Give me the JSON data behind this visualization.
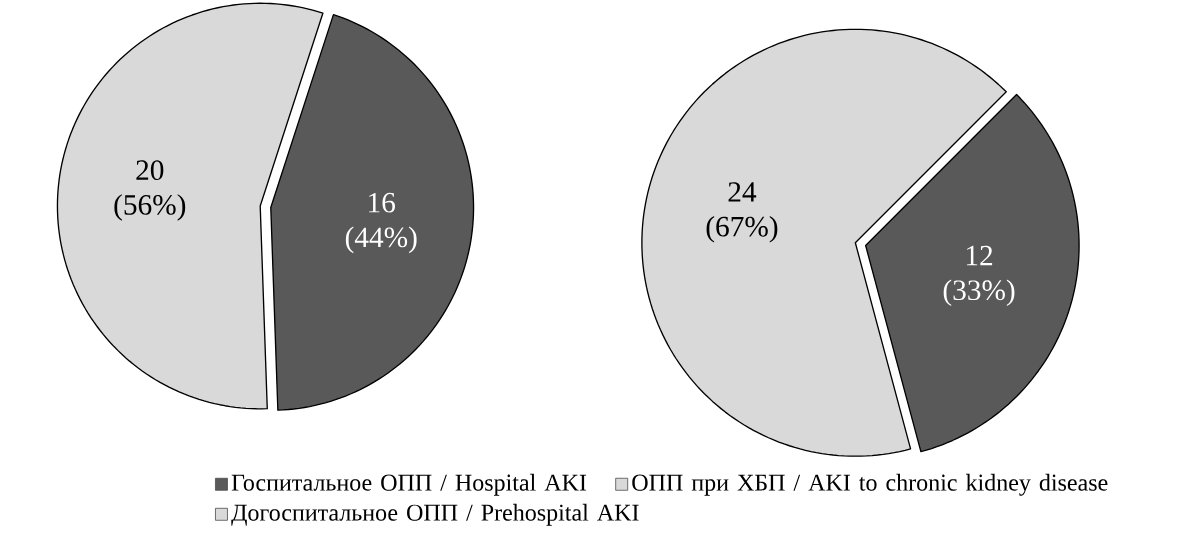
{
  "chart_data": [
    {
      "type": "pie",
      "categories": [
        "Госпитальное ОПП / Hospital AKI",
        "Догоспитальное ОПП / Prehospital AKI"
      ],
      "values": [
        16,
        20
      ],
      "colors": [
        "#595959",
        "#d9d9d9"
      ],
      "value_labels": [
        "16 (44%)",
        "20 (56%)"
      ],
      "legend": "bottom"
    },
    {
      "type": "pie",
      "categories": [
        null,
        "ОПП при ХБП / AKI to chronic kidney disease"
      ],
      "values": [
        12,
        24
      ],
      "colors": [
        "#595959",
        "#d9d9d9"
      ],
      "value_labels": [
        "12 (33%)",
        "24 (67%)"
      ],
      "legend": "bottom"
    }
  ]
}
